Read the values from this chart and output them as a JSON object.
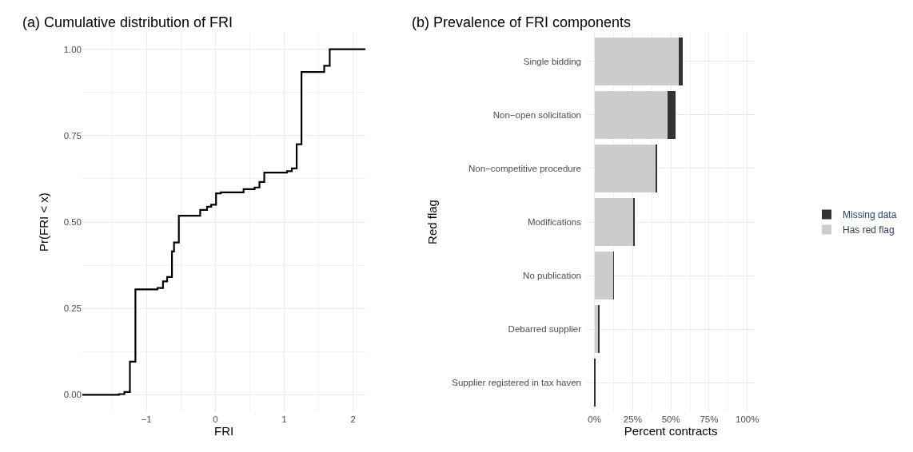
{
  "chart_data": [
    {
      "type": "step",
      "title": "(a) Cumulative distribution of FRI",
      "xlabel": "FRI",
      "ylabel": "Pr(FRI < x)",
      "x": [
        -1.93,
        -1.4,
        -1.32,
        -1.24,
        -1.16,
        -0.84,
        -0.76,
        -0.7,
        -0.63,
        -0.6,
        -0.53,
        -0.22,
        -0.12,
        -0.06,
        0.01,
        0.08,
        0.41,
        0.57,
        0.64,
        0.71,
        1.04,
        1.11,
        1.18,
        1.25,
        1.58,
        1.66,
        2.18
      ],
      "series": [
        {
          "color": "#000000",
          "values": [
            0,
            0.002,
            0.008,
            0.096,
            0.305,
            0.309,
            0.328,
            0.341,
            0.415,
            0.441,
            0.518,
            0.535,
            0.544,
            0.55,
            0.583,
            0.586,
            0.595,
            0.6,
            0.616,
            0.643,
            0.647,
            0.655,
            0.725,
            0.934,
            0.952,
            1.0,
            1.0
          ]
        }
      ],
      "xlim": [
        -1.93,
        2.18
      ],
      "xticks": [
        {
          "value": -1,
          "label": "−1"
        },
        0,
        1,
        2
      ],
      "ylim": [
        -0.05,
        1.05
      ],
      "yticks": [
        {
          "value": 0,
          "label": "0.00"
        },
        {
          "value": 0.25,
          "label": "0.25"
        },
        {
          "value": 0.5,
          "label": "0.50"
        },
        {
          "value": 0.75,
          "label": "0.75"
        },
        {
          "value": 1,
          "label": "1.00"
        }
      ],
      "grid": true,
      "legend": false,
      "line_style": "solid",
      "marker": "none"
    },
    {
      "type": "bar",
      "title": "(b) Prevalence of FRI components",
      "xlabel": "Percent contracts",
      "ylabel": "Red flag",
      "orientation": "horizontal",
      "stacked": true,
      "categories": [
        "Single bidding",
        "Non−open solicitation",
        "Non−competitive procedure",
        "Modifications",
        "No publication",
        "Debarred supplier",
        "Supplier registered in tax haven"
      ],
      "series": [
        {
          "name": "Has red flag",
          "color": "#cccccc",
          "values": [
            55,
            48,
            40.3,
            25.6,
            12.4,
            2.7,
            0
          ]
        },
        {
          "name": "Missing data",
          "color": "#333333",
          "values": [
            2.5,
            5,
            0.5,
            0.3,
            0.3,
            0.3,
            1
          ]
        }
      ],
      "xlim": [
        -5,
        105
      ],
      "xticks": [
        {
          "value": 0,
          "label": "0%"
        },
        {
          "value": 25,
          "label": "25%"
        },
        {
          "value": 50,
          "label": "50%"
        },
        {
          "value": 75,
          "label": "75%"
        },
        {
          "value": 100,
          "label": "100%"
        }
      ],
      "grid": true,
      "legend": "right"
    }
  ]
}
